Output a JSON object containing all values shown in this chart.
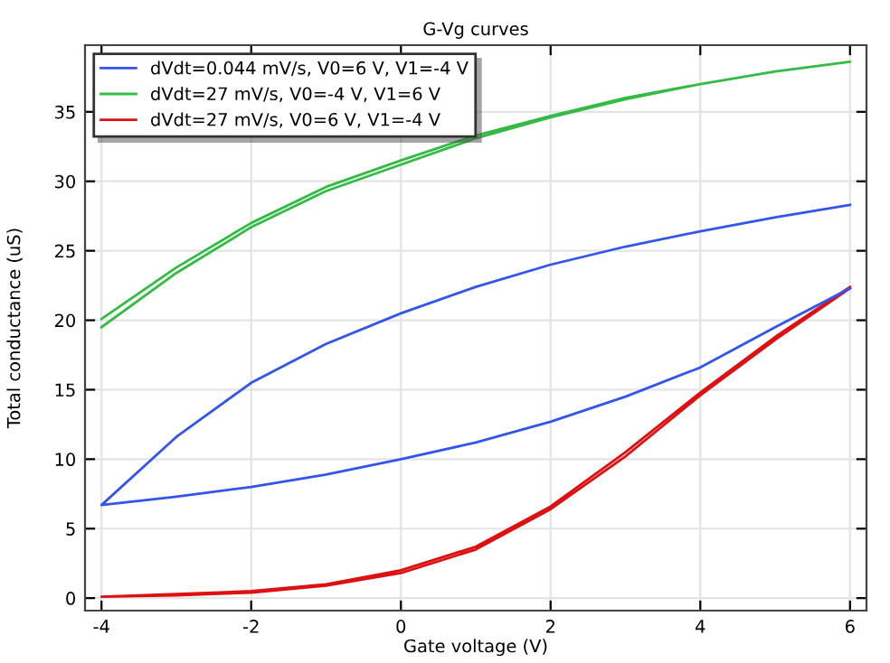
{
  "chart_data": {
    "type": "line",
    "title": "G-Vg curves",
    "xlabel": "Gate voltage (V)",
    "ylabel": "Total conductance (uS)",
    "xlim": [
      -4.22,
      6.22
    ],
    "ylim": [
      -0.9,
      39.8
    ],
    "xticks": [
      -4,
      -2,
      0,
      2,
      4,
      6
    ],
    "yticks": [
      0,
      5,
      10,
      15,
      20,
      25,
      30,
      35
    ],
    "grid": true,
    "legend": "top left",
    "line_style": "solid",
    "marker": "none",
    "series": [
      {
        "name": "dVdt=0.044 mV/s, V0=6 V, V1=-4 V",
        "color": "#3355ee",
        "x": [
          6,
          5,
          4,
          3,
          2,
          1,
          0,
          -1,
          -2,
          -3,
          -4,
          -3,
          -2,
          -1,
          0,
          1,
          2,
          3,
          4,
          5,
          6
        ],
        "values": [
          22.3,
          19.5,
          16.6,
          14.5,
          12.7,
          11.2,
          10,
          8.9,
          8,
          7.3,
          6.7,
          11.6,
          15.5,
          18.3,
          20.5,
          22.4,
          24,
          25.3,
          26.4,
          27.4,
          28.3
        ]
      },
      {
        "name": "dVdt=27 mV/s, V0=-4 V, V1=6 V",
        "color": "#33bb44",
        "x": [
          -4,
          -3,
          -2,
          -1,
          0,
          1,
          2,
          3,
          4,
          5,
          6,
          5,
          4,
          3,
          2,
          1,
          0,
          -1,
          -2,
          -3,
          -4
        ],
        "values": [
          19.5,
          23.4,
          26.7,
          29.3,
          31.2,
          33.1,
          34.6,
          35.9,
          37,
          37.9,
          38.6,
          37.9,
          37,
          36,
          34.7,
          33.3,
          31.5,
          29.6,
          27,
          23.8,
          20.1
        ]
      },
      {
        "name": "dVdt=27 mV/s, V0=6 V, V1=-4 V",
        "color": "#dd1111",
        "x": [
          6,
          5,
          4,
          3,
          2,
          1,
          0,
          -1,
          -2,
          -3,
          -4,
          -3,
          -2,
          -1,
          0,
          1,
          2,
          3,
          4,
          5,
          6
        ],
        "values": [
          22.3,
          18.6,
          14.6,
          10.2,
          6.4,
          3.5,
          1.8,
          0.9,
          0.4,
          0.2,
          0.1,
          0.3,
          0.5,
          1.0,
          2.0,
          3.7,
          6.6,
          10.5,
          14.8,
          18.8,
          22.4
        ]
      }
    ]
  }
}
